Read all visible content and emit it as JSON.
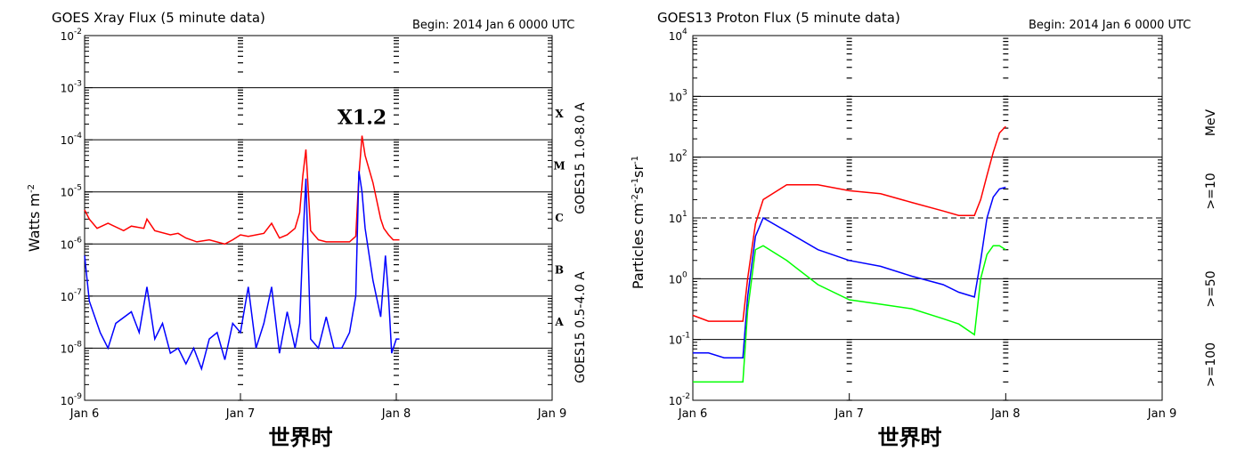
{
  "chart_data": [
    {
      "type": "line",
      "title": "GOES Xray Flux (5 minute data)",
      "begin": "Begin:  2014 Jan 6 0000 UTC",
      "ylabel": "Watts m",
      "ylabel_sup": "-2",
      "xlabel": "世界时",
      "y_scale": "log",
      "ylim": [
        1e-09,
        0.01
      ],
      "xlim": [
        0,
        3
      ],
      "x_ticks": [
        {
          "x": 0,
          "label": "Jan 6"
        },
        {
          "x": 1,
          "label": "Jan 7"
        },
        {
          "x": 2,
          "label": "Jan 8"
        },
        {
          "x": 3,
          "label": "Jan 9"
        }
      ],
      "y_ticks": [
        {
          "exp": -2,
          "label": "-2"
        },
        {
          "exp": -3,
          "label": "-3"
        },
        {
          "exp": -4,
          "label": "-4"
        },
        {
          "exp": -5,
          "label": "-5"
        },
        {
          "exp": -6,
          "label": "-6"
        },
        {
          "exp": -7,
          "label": "-7"
        },
        {
          "exp": -8,
          "label": "-8"
        },
        {
          "exp": -9,
          "label": "-9"
        }
      ],
      "tick_base": "10",
      "gridlines_exp": [
        -3,
        -4,
        -5,
        -6,
        -7,
        -8
      ],
      "flare_classes": [
        {
          "label": "X",
          "exp": -3.5
        },
        {
          "label": "M",
          "exp": -4.5
        },
        {
          "label": "C",
          "exp": -5.5
        },
        {
          "label": "B",
          "exp": -6.5
        },
        {
          "label": "A",
          "exp": -7.5
        }
      ],
      "annotation": {
        "text": "X1.2",
        "x": 1.78,
        "y_exp": -3.7
      },
      "series": [
        {
          "name": "GOES15 1.0-8.0 A",
          "color": "#ff0000",
          "x": [
            0,
            0.03,
            0.08,
            0.15,
            0.25,
            0.3,
            0.38,
            0.4,
            0.45,
            0.55,
            0.6,
            0.65,
            0.72,
            0.8,
            0.9,
            0.95,
            1.0,
            1.05,
            1.15,
            1.2,
            1.25,
            1.3,
            1.35,
            1.38,
            1.4,
            1.42,
            1.45,
            1.5,
            1.55,
            1.6,
            1.7,
            1.74,
            1.76,
            1.78,
            1.8,
            1.85,
            1.9,
            1.92,
            1.95,
            1.98,
            2.02
          ],
          "y": [
            4.5e-06,
            3e-06,
            2e-06,
            2.5e-06,
            1.8e-06,
            2.2e-06,
            2e-06,
            3e-06,
            1.8e-06,
            1.5e-06,
            1.6e-06,
            1.3e-06,
            1.1e-06,
            1.2e-06,
            1e-06,
            1.2e-06,
            1.5e-06,
            1.4e-06,
            1.6e-06,
            2.5e-06,
            1.3e-06,
            1.5e-06,
            2e-06,
            4e-06,
            2e-05,
            6.5e-05,
            1.8e-06,
            1.2e-06,
            1.1e-06,
            1.1e-06,
            1.1e-06,
            1.4e-06,
            2e-05,
            0.00012,
            5e-05,
            1.5e-05,
            3e-06,
            2e-06,
            1.5e-06,
            1.2e-06,
            1.2e-06
          ]
        },
        {
          "name": "GOES15 0.5-4.0 A",
          "color": "#0000ff",
          "x": [
            0,
            0.03,
            0.1,
            0.15,
            0.2,
            0.3,
            0.35,
            0.4,
            0.45,
            0.5,
            0.55,
            0.6,
            0.65,
            0.7,
            0.75,
            0.8,
            0.85,
            0.9,
            0.95,
            1.0,
            1.05,
            1.1,
            1.15,
            1.2,
            1.25,
            1.3,
            1.35,
            1.38,
            1.4,
            1.42,
            1.45,
            1.5,
            1.55,
            1.6,
            1.65,
            1.7,
            1.74,
            1.76,
            1.78,
            1.8,
            1.85,
            1.9,
            1.93,
            1.95,
            1.97,
            2.0,
            2.02
          ],
          "y": [
            6e-07,
            8e-08,
            2e-08,
            1e-08,
            3e-08,
            5e-08,
            2e-08,
            1.5e-07,
            1.5e-08,
            3e-08,
            8e-09,
            1e-08,
            5e-09,
            1e-08,
            4e-09,
            1.5e-08,
            2e-08,
            6e-09,
            3e-08,
            2e-08,
            1.5e-07,
            1e-08,
            3e-08,
            1.5e-07,
            8e-09,
            5e-08,
            1e-08,
            3e-08,
            1e-06,
            1.8e-05,
            1.5e-08,
            1e-08,
            4e-08,
            1e-08,
            1e-08,
            2e-08,
            1e-07,
            2.5e-05,
            1e-05,
            2e-06,
            2e-07,
            4e-08,
            6e-07,
            1e-07,
            8e-09,
            1.5e-08,
            1.5e-08
          ]
        }
      ]
    },
    {
      "type": "line",
      "title": "GOES13 Proton Flux (5 minute data)",
      "begin": "Begin:  2014 Jan 6 0000 UTC",
      "ylabel": "Particles cm",
      "ylabel_sup1": "-2",
      "ylabel_mid": "s",
      "ylabel_sup2": "-1",
      "ylabel_end": "sr",
      "ylabel_sup3": "-1",
      "xlabel": "世界时",
      "units": "MeV",
      "y_scale": "log",
      "ylim": [
        0.01,
        10000
      ],
      "xlim": [
        0,
        3
      ],
      "x_ticks": [
        {
          "x": 0,
          "label": "Jan 6"
        },
        {
          "x": 1,
          "label": "Jan 7"
        },
        {
          "x": 2,
          "label": "Jan 8"
        },
        {
          "x": 3,
          "label": "Jan 9"
        }
      ],
      "y_ticks": [
        {
          "exp": 4,
          "label": "4"
        },
        {
          "exp": 3,
          "label": "3"
        },
        {
          "exp": 2,
          "label": "2"
        },
        {
          "exp": 1,
          "label": "1"
        },
        {
          "exp": 0,
          "label": "0"
        },
        {
          "exp": -1,
          "label": "-1"
        },
        {
          "exp": -2,
          "label": "-2"
        }
      ],
      "tick_base": "10",
      "gridlines_exp": [
        3,
        2,
        0,
        -1
      ],
      "dashed_line_exp": 1,
      "series": [
        {
          "name": ">=10",
          "color": "#ff0000",
          "x": [
            0,
            0.1,
            0.2,
            0.32,
            0.35,
            0.4,
            0.45,
            0.6,
            0.8,
            1.0,
            1.2,
            1.4,
            1.6,
            1.7,
            1.8,
            1.84,
            1.88,
            1.92,
            1.96,
            2.0
          ],
          "y": [
            0.25,
            0.2,
            0.2,
            0.2,
            1.0,
            8.0,
            20.0,
            35.0,
            35.0,
            28.0,
            25.0,
            18.0,
            13.0,
            11.0,
            11.0,
            20.0,
            50.0,
            120.0,
            250.0,
            320.0
          ]
        },
        {
          "name": ">=50",
          "color": "#0000ff",
          "x": [
            0,
            0.1,
            0.2,
            0.32,
            0.35,
            0.4,
            0.45,
            0.6,
            0.8,
            1.0,
            1.2,
            1.4,
            1.6,
            1.7,
            1.8,
            1.84,
            1.88,
            1.92,
            1.96,
            2.0
          ],
          "y": [
            0.06,
            0.06,
            0.05,
            0.05,
            0.5,
            5.0,
            10.0,
            6.0,
            3.0,
            2.0,
            1.6,
            1.1,
            0.8,
            0.6,
            0.5,
            2.0,
            10.0,
            22.0,
            30.0,
            32.0
          ]
        },
        {
          "name": ">=100",
          "color": "#00ff00",
          "x": [
            0,
            0.1,
            0.2,
            0.32,
            0.35,
            0.4,
            0.45,
            0.6,
            0.8,
            1.0,
            1.2,
            1.4,
            1.6,
            1.7,
            1.8,
            1.84,
            1.88,
            1.92,
            1.96,
            2.0
          ],
          "y": [
            0.02,
            0.02,
            0.02,
            0.02,
            0.3,
            3.0,
            3.5,
            2.0,
            0.8,
            0.45,
            0.38,
            0.32,
            0.22,
            0.18,
            0.12,
            1.0,
            2.5,
            3.5,
            3.5,
            3.0
          ]
        }
      ]
    }
  ]
}
